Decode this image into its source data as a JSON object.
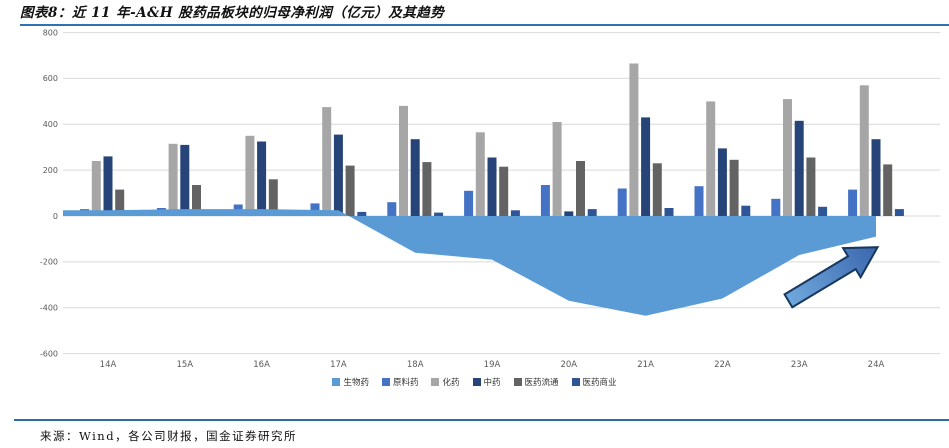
{
  "page": {
    "title": "图表8：近 11 年-A&H 股药品板块的归母净利润（亿元）及其趋势",
    "source": "来源：Wind，各公司财报，国金证券研究所",
    "accent_line_color": "#2E74B5"
  },
  "chart_data": {
    "type": "bar",
    "subtype": "grouped bars with one area series and trend arrow annotation",
    "title": "近 11 年-A&H 股药品板块的归母净利润（亿元）及其趋势",
    "categories": [
      "14A",
      "15A",
      "16A",
      "17A",
      "18A",
      "19A",
      "20A",
      "21A",
      "22A",
      "23A",
      "24A"
    ],
    "series": [
      {
        "name": "生物药",
        "type": "area",
        "color": "#5B9BD5",
        "values": [
          25,
          30,
          30,
          25,
          -160,
          -190,
          -370,
          -435,
          -360,
          -170,
          -90
        ]
      },
      {
        "name": "原料药",
        "type": "bar",
        "color": "#4472C4",
        "values": [
          30,
          35,
          50,
          55,
          60,
          110,
          135,
          120,
          130,
          75,
          115
        ]
      },
      {
        "name": "化药",
        "type": "bar",
        "color": "#A6A6A6",
        "values": [
          240,
          315,
          350,
          475,
          480,
          365,
          410,
          665,
          500,
          510,
          570
        ]
      },
      {
        "name": "中药",
        "type": "bar",
        "color": "#264478",
        "values": [
          260,
          310,
          325,
          355,
          335,
          255,
          20,
          430,
          295,
          415,
          335
        ]
      },
      {
        "name": "医药流通",
        "type": "bar",
        "color": "#636363",
        "values": [
          115,
          135,
          160,
          220,
          235,
          215,
          240,
          230,
          245,
          255,
          225
        ]
      },
      {
        "name": "医药商业",
        "type": "bar",
        "color": "#2F5597",
        "values": [
          10,
          12,
          12,
          18,
          15,
          25,
          30,
          35,
          45,
          40,
          30
        ]
      }
    ],
    "xlabel": "",
    "ylabel": "",
    "ylim": [
      -600,
      800
    ],
    "ytick_step": 200,
    "grid": "horizontal light gray",
    "legend_position": "bottom center",
    "legend_labels": [
      "生物药",
      "原料药",
      "化药",
      "中药",
      "医药流通",
      "医药商业"
    ],
    "annotation": {
      "type": "block-arrow-up-right",
      "fill_from": "#6FA8DC",
      "fill_to": "#3B66AE",
      "stroke": "#17375E"
    },
    "tick_color": "#595959",
    "gridline_color": "#D9D9D9"
  }
}
